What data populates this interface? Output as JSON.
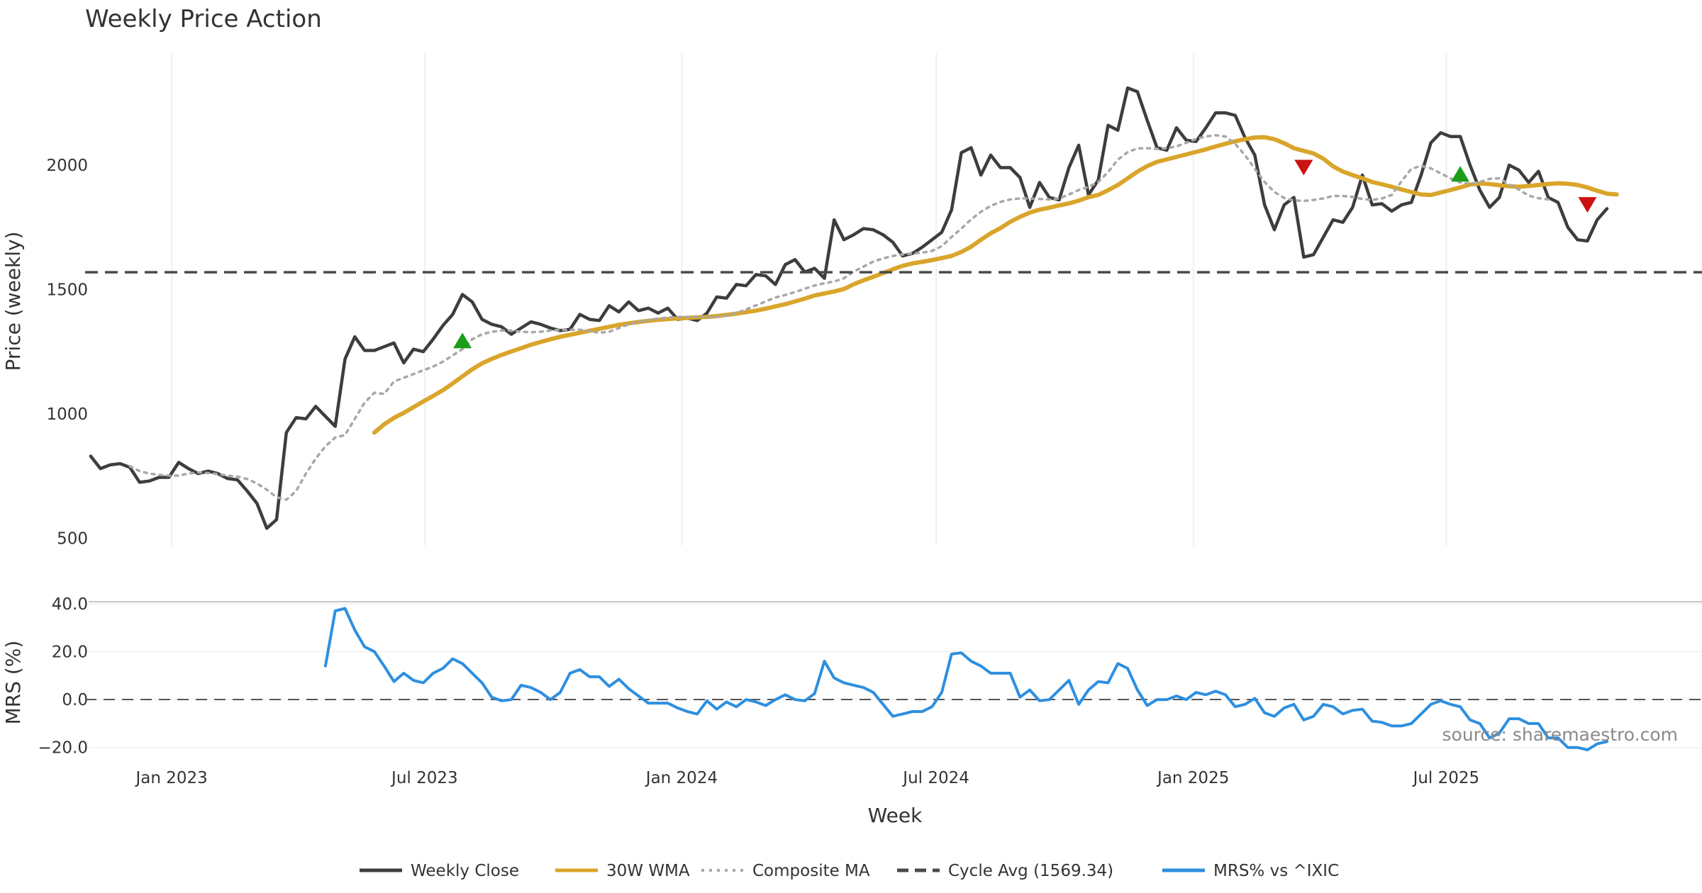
{
  "chart_data": [
    {
      "type": "line",
      "title": "Weekly Price Action",
      "xlabel": "Week",
      "ylabel": "Price (weekly)",
      "ylim": [
        470,
        2450
      ],
      "yticks": [
        500,
        1000,
        1500,
        2000
      ],
      "x_range": [
        "2022-10-31",
        "2025-12-31"
      ],
      "x_ticks": [
        {
          "date": "2023-01-01",
          "label": "Jan 2023"
        },
        {
          "date": "2023-07-01",
          "label": "Jul 2023"
        },
        {
          "date": "2024-01-01",
          "label": "Jan 2024"
        },
        {
          "date": "2024-07-01",
          "label": "Jul 2024"
        },
        {
          "date": "2025-01-01",
          "label": "Jan 2025"
        },
        {
          "date": "2025-07-01",
          "label": "Jul 2025"
        }
      ],
      "grid": true,
      "start_date": "2022-11-04",
      "series": [
        {
          "name": "Weekly Close",
          "color": "#3d3d3d",
          "style": "solid",
          "start": 0,
          "values": [
            830,
            780,
            795,
            800,
            785,
            725,
            730,
            745,
            745,
            805,
            780,
            760,
            770,
            760,
            740,
            735,
            690,
            640,
            540,
            575,
            925,
            985,
            980,
            1030,
            990,
            950,
            1220,
            1310,
            1255,
            1255,
            1270,
            1285,
            1205,
            1260,
            1250,
            1300,
            1355,
            1400,
            1480,
            1450,
            1380,
            1360,
            1350,
            1320,
            1345,
            1370,
            1360,
            1345,
            1335,
            1340,
            1400,
            1380,
            1375,
            1435,
            1410,
            1450,
            1415,
            1425,
            1405,
            1425,
            1380,
            1385,
            1375,
            1405,
            1470,
            1465,
            1520,
            1515,
            1560,
            1555,
            1520,
            1600,
            1620,
            1570,
            1585,
            1545,
            1780,
            1700,
            1720,
            1745,
            1740,
            1720,
            1690,
            1635,
            1645,
            1670,
            1700,
            1730,
            1820,
            2050,
            2070,
            1960,
            2040,
            1990,
            1990,
            1950,
            1830,
            1930,
            1870,
            1860,
            1990,
            2080,
            1880,
            1940,
            2160,
            2140,
            2310,
            2295,
            2180,
            2070,
            2060,
            2150,
            2100,
            2095,
            2150,
            2210,
            2210,
            2200,
            2110,
            2040,
            1840,
            1740,
            1840,
            1870,
            1630,
            1640,
            1710,
            1780,
            1770,
            1830,
            1960,
            1840,
            1845,
            1815,
            1840,
            1850,
            1960,
            2090,
            2130,
            2115,
            2115,
            2000,
            1900,
            1830,
            1870,
            2000,
            1980,
            1930,
            1975,
            1870,
            1850,
            1750,
            1700,
            1695,
            1780,
            1825
          ]
        },
        {
          "name": "30W WMA",
          "color": "#d9a52a",
          "style": "solid",
          "start": 29,
          "values": [
            925,
            958,
            984,
            1004,
            1027,
            1050,
            1072,
            1095,
            1122,
            1151,
            1179,
            1203,
            1221,
            1237,
            1251,
            1264,
            1278,
            1289,
            1300,
            1310,
            1318,
            1326,
            1334,
            1342,
            1350,
            1358,
            1364,
            1369,
            1374,
            1378,
            1381,
            1384,
            1386,
            1388,
            1390,
            1393,
            1398,
            1403,
            1409,
            1415,
            1423,
            1432,
            1441,
            1452,
            1463,
            1476,
            1484,
            1492,
            1502,
            1521,
            1537,
            1551,
            1566,
            1581,
            1595,
            1605,
            1611,
            1618,
            1626,
            1635,
            1651,
            1672,
            1700,
            1726,
            1747,
            1772,
            1792,
            1809,
            1821,
            1829,
            1838,
            1846,
            1857,
            1871,
            1880,
            1899,
            1920,
            1947,
            1974,
            1996,
            2013,
            2023,
            2033,
            2043,
            2053,
            2063,
            2075,
            2086,
            2096,
            2104,
            2111,
            2112,
            2104,
            2088,
            2068,
            2057,
            2047,
            2026,
            1995,
            1974,
            1960,
            1947,
            1932,
            1923,
            1913,
            1902,
            1892,
            1882,
            1880,
            1890,
            1900,
            1910,
            1922,
            1926,
            1924,
            1919,
            1915,
            1913,
            1916,
            1920,
            1924,
            1927,
            1925,
            1920,
            1910,
            1897,
            1885,
            1882
          ]
        },
        {
          "name": "Composite MA",
          "color": "#a8a8a8",
          "style": "dotted",
          "start": 4,
          "values": [
            790,
            770,
            760,
            755,
            752,
            752,
            760,
            765,
            762,
            758,
            752,
            748,
            738,
            720,
            695,
            665,
            655,
            690,
            760,
            820,
            870,
            905,
            915,
            980,
            1045,
            1085,
            1080,
            1130,
            1145,
            1160,
            1175,
            1190,
            1210,
            1235,
            1260,
            1300,
            1320,
            1330,
            1335,
            1335,
            1330,
            1328,
            1330,
            1335,
            1338,
            1338,
            1338,
            1333,
            1326,
            1330,
            1345,
            1360,
            1370,
            1378,
            1383,
            1387,
            1390,
            1390,
            1390,
            1390,
            1390,
            1395,
            1405,
            1420,
            1436,
            1452,
            1468,
            1478,
            1490,
            1503,
            1516,
            1525,
            1532,
            1545,
            1572,
            1592,
            1612,
            1625,
            1635,
            1641,
            1645,
            1648,
            1655,
            1674,
            1711,
            1745,
            1782,
            1812,
            1836,
            1852,
            1862,
            1866,
            1866,
            1864,
            1862,
            1866,
            1882,
            1900,
            1912,
            1932,
            1972,
            2022,
            2052,
            2067,
            2068,
            2065,
            2068,
            2075,
            2090,
            2105,
            2115,
            2120,
            2115,
            2085,
            2040,
            1985,
            1932,
            1892,
            1868,
            1858,
            1856,
            1860,
            1866,
            1876,
            1876,
            1872,
            1864,
            1860,
            1866,
            1880,
            1935,
            1985,
            1997,
            1987,
            1967,
            1947,
            1930,
            1925,
            1932,
            1945,
            1947,
            1922,
            1902,
            1877,
            1867,
            1862
          ]
        },
        {
          "name": "Cycle Avg (1569.34)",
          "color": "#4a4a4a",
          "style": "dashed",
          "constant": 1569.34
        }
      ],
      "signals": [
        {
          "type": "buy",
          "week": 38,
          "value": 1295,
          "color": "#1a9e1a"
        },
        {
          "type": "sell",
          "week": 124,
          "value": 1990,
          "color": "#cc1111"
        },
        {
          "type": "buy",
          "week": 140,
          "value": 1965,
          "color": "#1a9e1a"
        },
        {
          "type": "sell",
          "week": 153,
          "value": 1840,
          "color": "#cc1111"
        }
      ]
    },
    {
      "type": "line",
      "ylabel": "MRS (%)",
      "ylim": [
        -26,
        42
      ],
      "yticks": [
        -20.0,
        0.0,
        20.0,
        40.0
      ],
      "ytick_labels": [
        "−20.0",
        "0.0",
        "20.0",
        "40.0"
      ],
      "zero_line": true,
      "series": [
        {
          "name": "MRS% vs ^IXIC",
          "color": "#2e8fe0",
          "style": "solid",
          "start": 24,
          "values": [
            14,
            37,
            38,
            29,
            22,
            20,
            14,
            7.5,
            11,
            8,
            7,
            11,
            13,
            17,
            15,
            11,
            7,
            1,
            -0.5,
            0,
            6,
            5,
            3,
            0,
            3,
            11,
            12.5,
            9.5,
            9.5,
            5.5,
            8.5,
            4.5,
            1.5,
            -1.5,
            -1.5,
            -1.5,
            -3.5,
            -5,
            -6,
            -0.5,
            -4,
            -1,
            -3,
            0,
            -1,
            -2.5,
            0,
            2,
            0,
            -0.5,
            2.5,
            16,
            9,
            7,
            6,
            5,
            3,
            -2,
            -7,
            -6,
            -5,
            -5,
            -3,
            3,
            19,
            19.5,
            16,
            14,
            11,
            11,
            11,
            1,
            4,
            -0.5,
            0,
            4,
            8,
            -2,
            4,
            7.5,
            7,
            15,
            13,
            4,
            -2.5,
            0,
            0,
            1.5,
            0,
            3,
            2,
            3.5,
            2,
            -3,
            -2,
            0.5,
            -5.5,
            -7,
            -3.5,
            -2,
            -8.5,
            -7,
            -2,
            -3,
            -6,
            -4.5,
            -4,
            -9,
            -9.5,
            -11,
            -11,
            -10,
            -6,
            -2,
            -0.5,
            -2,
            -3,
            -8.5,
            -10,
            -16,
            -14,
            -8,
            -8,
            -10,
            -10,
            -16,
            -16,
            -20,
            -20,
            -21,
            -18.5,
            -17.5
          ]
        }
      ]
    }
  ],
  "legend": {
    "position": "bottom-center",
    "items": [
      {
        "label": "Weekly Close",
        "color": "#3d3d3d",
        "style": "solid"
      },
      {
        "label": "30W WMA",
        "color": "#d9a52a",
        "style": "solid"
      },
      {
        "label": "Composite MA",
        "color": "#a8a8a8",
        "style": "dotted"
      },
      {
        "label": "Cycle Avg (1569.34)",
        "color": "#4a4a4a",
        "style": "dashed"
      },
      {
        "label": "MRS% vs ^IXIC",
        "color": "#2e8fe0",
        "style": "solid"
      }
    ]
  },
  "source_note": "source: sharemaestro.com"
}
